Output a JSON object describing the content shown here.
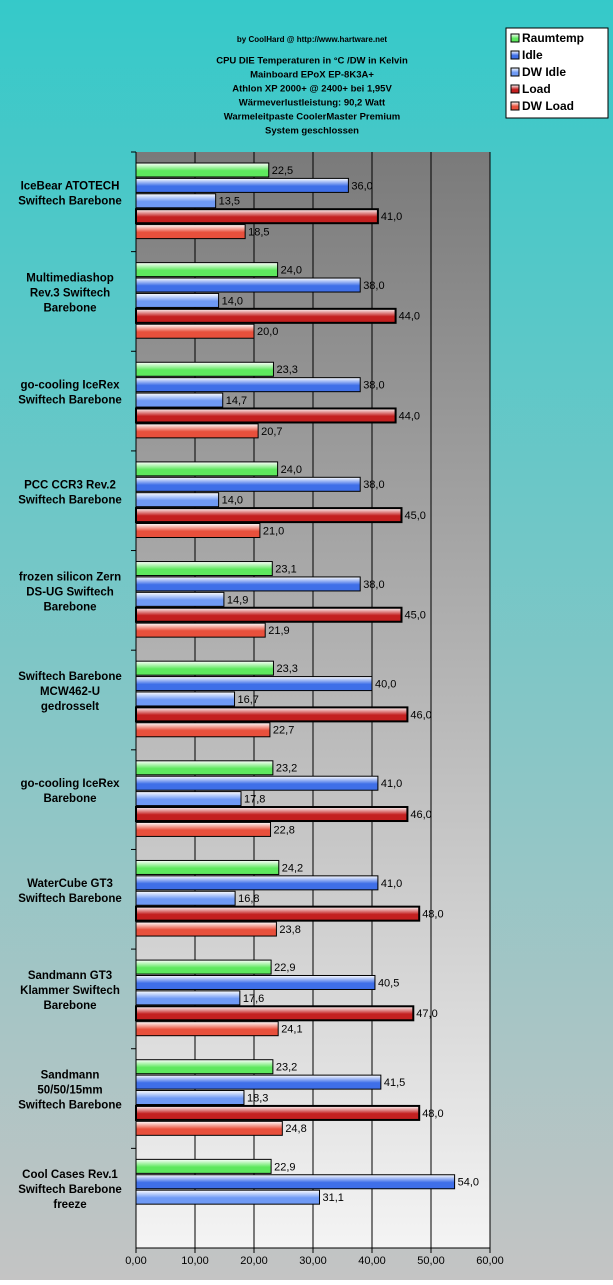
{
  "chart_data": {
    "type": "hbar",
    "title": [
      "by CoolHard @ http://www.hartware.net",
      "CPU DIE Temperaturen in °C /DW in Kelvin",
      "Mainboard EPoX EP-8K3A+",
      "Athlon XP 2000+ @ 2400+ bei 1,95V",
      "Wärmeverlustleistung: 90,2 Watt",
      "Warmeleitpaste CoolerMaster Premium",
      "System geschlossen"
    ],
    "categories": [
      [
        "IceBear ATOTECH",
        "Swiftech Barebone"
      ],
      [
        "Multimediashop",
        "Rev.3 Swiftech",
        "Barebone"
      ],
      [
        "go-cooling IceRex",
        "Swiftech Barebone"
      ],
      [
        "PCC CCR3 Rev.2",
        "Swiftech Barebone"
      ],
      [
        "frozen silicon Zern",
        "DS-UG Swiftech",
        "Barebone"
      ],
      [
        "Swiftech Barebone",
        "MCW462-U",
        "gedrosselt"
      ],
      [
        "go-cooling IceRex",
        "Barebone"
      ],
      [
        "WaterCube GT3",
        "Swiftech Barebone"
      ],
      [
        "Sandmann GT3",
        "Klammer Swiftech",
        "Barebone"
      ],
      [
        "Sandmann",
        "50/50/15mm",
        "Swiftech Barebone"
      ],
      [
        "Cool Cases Rev.1",
        "Swiftech Barebone",
        "freeze"
      ]
    ],
    "series": [
      {
        "name": "Raumtemp",
        "color": "#5ee85e",
        "values": [
          22.5,
          24.0,
          23.3,
          24.0,
          23.1,
          23.3,
          23.2,
          24.2,
          22.9,
          23.2,
          22.9
        ],
        "value_labels": [
          "22,5",
          "24,0",
          "23,3",
          "24,0",
          "23,1",
          "23,3",
          "23,2",
          "24,2",
          "22,9",
          "23,2",
          "22,9"
        ]
      },
      {
        "name": "Idle",
        "color": "#3f6fe8",
        "values": [
          36.0,
          38.0,
          38.0,
          38.0,
          38.0,
          40.0,
          41.0,
          41.0,
          40.5,
          41.5,
          54.0
        ],
        "value_labels": [
          "36,0",
          "38,0",
          "38,0",
          "38,0",
          "38,0",
          "40,0",
          "41,0",
          "41,0",
          "40,5",
          "41,5",
          "54,0"
        ]
      },
      {
        "name": "DW Idle",
        "color": "#6f9af5",
        "values": [
          13.5,
          14.0,
          14.7,
          14.0,
          14.9,
          16.7,
          17.8,
          16.8,
          17.6,
          18.3,
          31.1
        ],
        "value_labels": [
          "13,5",
          "14,0",
          "14,7",
          "14,0",
          "14,9",
          "16,7",
          "17,8",
          "16,8",
          "17,6",
          "18,3",
          "31,1"
        ]
      },
      {
        "name": "Load",
        "color": "#c42020",
        "values": [
          41.0,
          44.0,
          44.0,
          45.0,
          45.0,
          46.0,
          46.0,
          48.0,
          47.0,
          48.0,
          null
        ],
        "value_labels": [
          "41,0",
          "44,0",
          "44,0",
          "45,0",
          "45,0",
          "46,0",
          "46,0",
          "48,0",
          "47,0",
          "48,0",
          null
        ]
      },
      {
        "name": "DW Load",
        "color": "#e8503c",
        "values": [
          18.5,
          20.0,
          20.7,
          21.0,
          21.9,
          22.7,
          22.8,
          23.8,
          24.1,
          24.8,
          null
        ],
        "value_labels": [
          "18,5",
          "20,0",
          "20,7",
          "21,0",
          "21,9",
          "22,7",
          "22,8",
          "23,8",
          "24,1",
          "24,8",
          null
        ]
      }
    ],
    "xlim": [
      0,
      60
    ],
    "xticks": [
      {
        "value": 0,
        "label": "0,00"
      },
      {
        "value": 10,
        "label": "10,00"
      },
      {
        "value": 20,
        "label": "20,00"
      },
      {
        "value": 30,
        "label": "30,00"
      },
      {
        "value": 40,
        "label": "40,00"
      },
      {
        "value": 50,
        "label": "50,00"
      },
      {
        "value": 60,
        "label": "60,00"
      }
    ],
    "grid": true,
    "legend": "top-right"
  }
}
